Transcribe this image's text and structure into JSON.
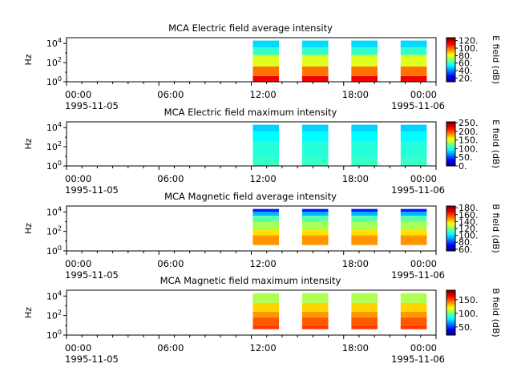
{
  "page": {
    "title": ""
  },
  "chart_data": [
    {
      "type": "heatmap",
      "title": "MCA  Electric field average intensity",
      "ylabel": "Hz",
      "cbar_label": "E field (dB)",
      "cbar_ticks": [
        "20.",
        "40.",
        "60.",
        "80.",
        "100.",
        "120."
      ],
      "cbar_range": [
        10,
        128
      ],
      "ylim_log10": [
        0,
        4.6
      ],
      "y_tick_exponents": [
        "0",
        "2",
        "4"
      ],
      "x_ticks": [
        "00:00",
        "06:00",
        "12:00",
        "18:00"
      ],
      "x_date_left": "1995-11-05",
      "x_date_right_time": "00:00",
      "x_date_right": "1995-11-06",
      "xlim_hours": [
        0,
        24
      ],
      "segments_hours": [
        [
          12.1,
          13.8
        ],
        [
          15.3,
          17.0
        ],
        [
          18.5,
          20.2
        ],
        [
          21.7,
          23.4
        ]
      ],
      "profile_bands": [
        {
          "from": 0.0,
          "to": 0.6,
          "value": 115
        },
        {
          "from": 0.6,
          "to": 1.6,
          "value": 100
        },
        {
          "from": 1.6,
          "to": 2.8,
          "value": 80
        },
        {
          "from": 2.8,
          "to": 3.6,
          "value": 60
        },
        {
          "from": 3.6,
          "to": 4.3,
          "value": 50
        }
      ]
    },
    {
      "type": "heatmap",
      "title": "MCA  Electric field maximum intensity",
      "ylabel": "Hz",
      "cbar_label": "E field (dB)",
      "cbar_ticks": [
        "0.",
        "50.",
        "100.",
        "150.",
        "200.",
        "250."
      ],
      "cbar_range": [
        0,
        255
      ],
      "ylim_log10": [
        0,
        4.6
      ],
      "y_tick_exponents": [
        "0",
        "2",
        "4"
      ],
      "x_ticks": [
        "00:00",
        "06:00",
        "12:00",
        "18:00"
      ],
      "x_date_left": "1995-11-05",
      "x_date_right_time": "00:00",
      "x_date_right": "1995-11-06",
      "xlim_hours": [
        0,
        24
      ],
      "segments_hours": [
        [
          12.1,
          13.8
        ],
        [
          15.3,
          17.0
        ],
        [
          18.5,
          20.2
        ],
        [
          21.7,
          23.4
        ]
      ],
      "profile_bands": [
        {
          "from": 0.0,
          "to": 0.8,
          "value": 110
        },
        {
          "from": 0.8,
          "to": 2.5,
          "value": 105
        },
        {
          "from": 2.5,
          "to": 3.6,
          "value": 95
        },
        {
          "from": 3.6,
          "to": 4.3,
          "value": 85
        }
      ]
    },
    {
      "type": "heatmap",
      "title": "MCA  Magnetic field average intensity",
      "ylabel": "Hz",
      "cbar_label": "B field (dB)",
      "cbar_ticks": [
        "60.",
        "80.",
        "100.",
        "120.",
        "140.",
        "160.",
        "180."
      ],
      "cbar_range": [
        55,
        185
      ],
      "ylim_log10": [
        0,
        4.6
      ],
      "y_tick_exponents": [
        "0",
        "2",
        "4"
      ],
      "x_ticks": [
        "00:00",
        "06:00",
        "12:00",
        "18:00"
      ],
      "x_date_left": "1995-11-05",
      "x_date_right_time": "00:00",
      "x_date_right": "1995-11-06",
      "xlim_hours": [
        0,
        24
      ],
      "segments_hours": [
        [
          12.1,
          13.8
        ],
        [
          15.3,
          17.0
        ],
        [
          18.5,
          20.2
        ],
        [
          21.7,
          23.4
        ]
      ],
      "profile_bands": [
        {
          "from": 0.6,
          "to": 1.6,
          "value": 150
        },
        {
          "from": 1.6,
          "to": 2.2,
          "value": 140
        },
        {
          "from": 2.2,
          "to": 3.0,
          "value": 125
        },
        {
          "from": 3.0,
          "to": 3.6,
          "value": 115
        },
        {
          "from": 3.6,
          "to": 4.0,
          "value": 95
        },
        {
          "from": 4.0,
          "to": 4.3,
          "value": 75
        }
      ]
    },
    {
      "type": "heatmap",
      "title": "MCA  Magnetic field maximum intensity",
      "ylabel": "Hz",
      "cbar_label": "B field (dB)",
      "cbar_ticks": [
        "50.",
        "100.",
        "150."
      ],
      "cbar_range": [
        20,
        185
      ],
      "ylim_log10": [
        0,
        4.6
      ],
      "y_tick_exponents": [
        "0",
        "2",
        "4"
      ],
      "x_ticks": [
        "00:00",
        "06:00",
        "12:00",
        "18:00"
      ],
      "x_date_left": "1995-11-05",
      "x_date_right_time": "00:00",
      "x_date_right": "1995-11-06",
      "xlim_hours": [
        0,
        24
      ],
      "segments_hours": [
        [
          12.1,
          13.8
        ],
        [
          15.3,
          17.0
        ],
        [
          18.5,
          20.2
        ],
        [
          21.7,
          23.4
        ]
      ],
      "profile_bands": [
        {
          "from": 0.6,
          "to": 1.0,
          "value": 155
        },
        {
          "from": 1.0,
          "to": 1.8,
          "value": 150
        },
        {
          "from": 1.8,
          "to": 2.4,
          "value": 140
        },
        {
          "from": 2.4,
          "to": 3.3,
          "value": 130
        },
        {
          "from": 3.3,
          "to": 4.3,
          "value": 110
        }
      ]
    }
  ]
}
